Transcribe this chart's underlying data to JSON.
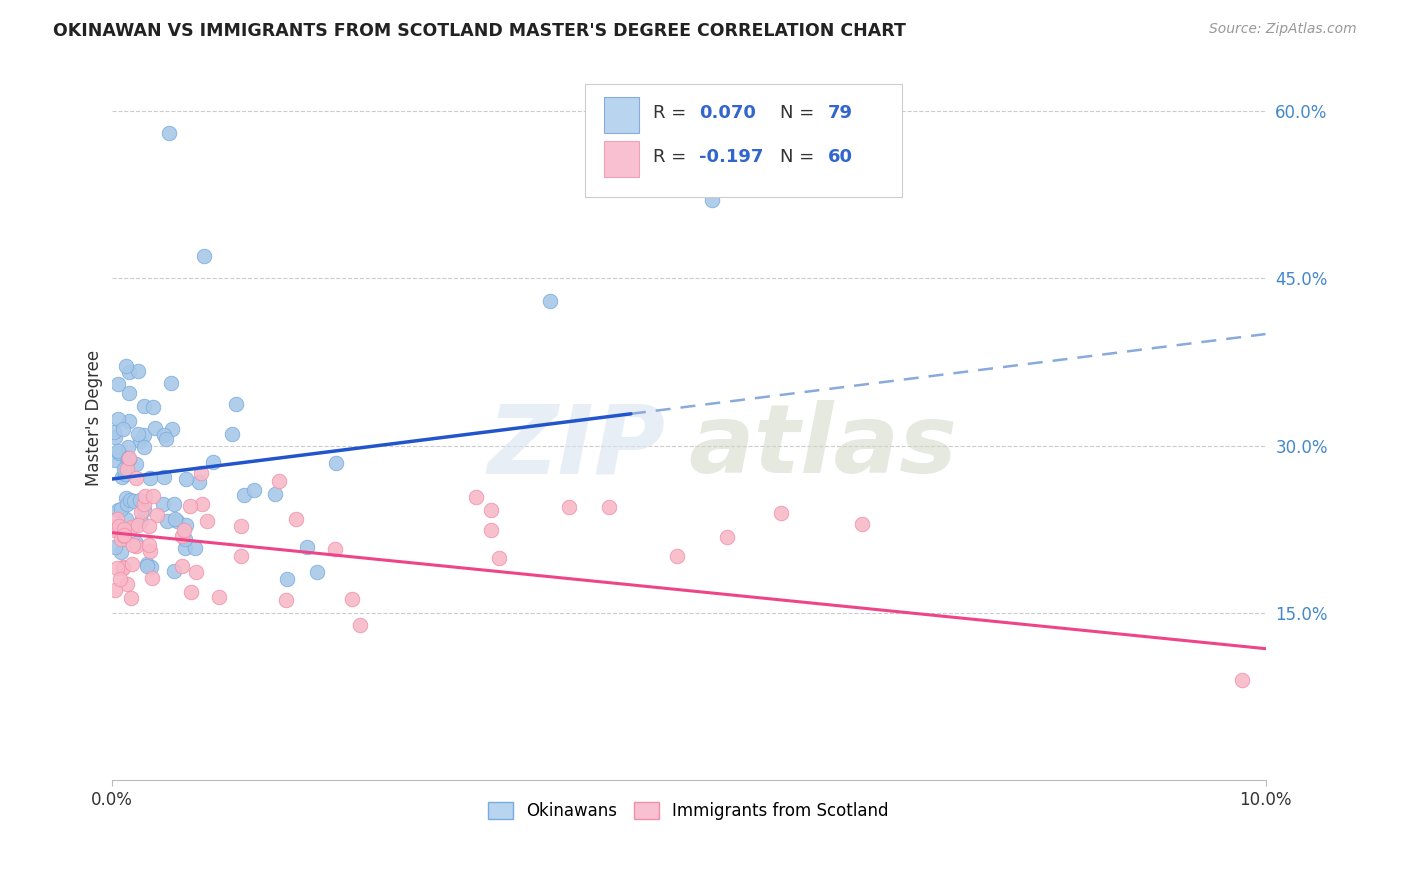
{
  "title": "OKINAWAN VS IMMIGRANTS FROM SCOTLAND MASTER'S DEGREE CORRELATION CHART",
  "source": "Source: ZipAtlas.com",
  "ylabel": "Master's Degree",
  "right_yticks": [
    "60.0%",
    "45.0%",
    "30.0%",
    "15.0%"
  ],
  "right_ytick_vals": [
    0.6,
    0.45,
    0.3,
    0.15
  ],
  "legend_label1": "Okinawans",
  "legend_label2": "Immigrants from Scotland",
  "xlim": [
    0.0,
    0.1
  ],
  "ylim": [
    0.0,
    0.65
  ],
  "blue_scatter_face": "#A8C8E8",
  "blue_scatter_edge": "#7AABE0",
  "pink_scatter_face": "#F8B8C8",
  "pink_scatter_edge": "#F090A8",
  "line_blue_solid": "#2255CC",
  "line_blue_dash": "#88AADD",
  "line_pink": "#EE4488",
  "legend_text_color": "#3366CC",
  "right_axis_color": "#4488CC",
  "blue_box_face": "#B8D4EE",
  "blue_box_edge": "#88AADD",
  "pink_box_face": "#F8C0D0",
  "pink_box_edge": "#F0A0B8",
  "blue_line_solid_end": 0.045,
  "ok_line_y0": 0.27,
  "ok_line_y1": 0.4,
  "sc_line_y0": 0.222,
  "sc_line_y1": 0.118
}
